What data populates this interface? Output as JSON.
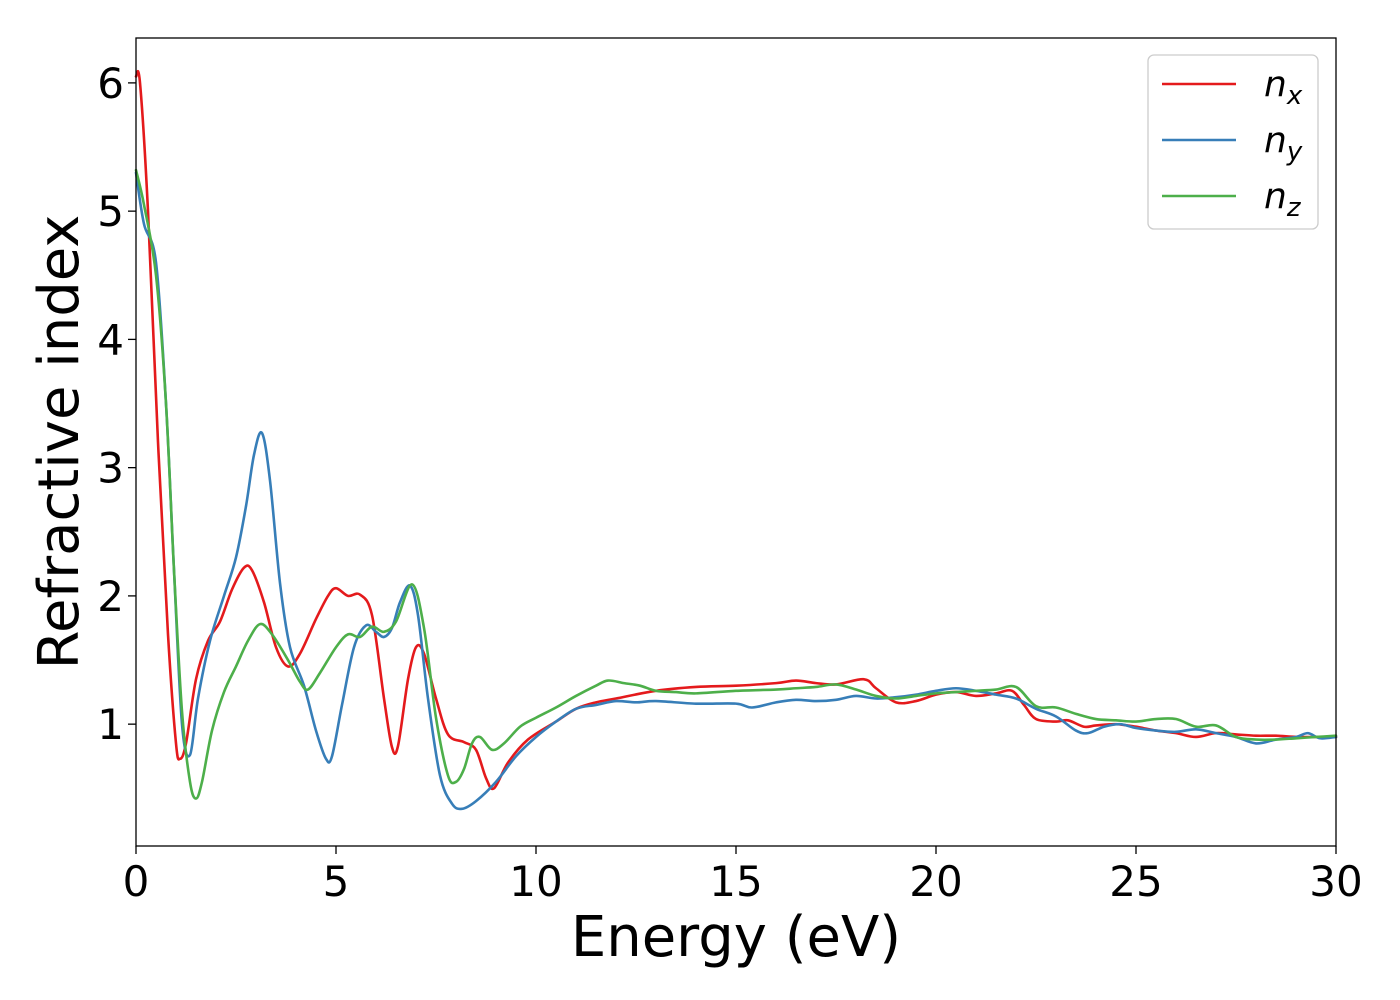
{
  "chart_data": {
    "type": "line",
    "title": "",
    "xlabel": "Energy (eV)",
    "ylabel": "Refractive index",
    "xlim": [
      0,
      30
    ],
    "ylim": [
      0.05,
      6.35
    ],
    "xticks": [
      0,
      5,
      10,
      15,
      20,
      25,
      30
    ],
    "yticks": [
      1,
      2,
      3,
      4,
      5,
      6
    ],
    "grid": false,
    "legend_position": "top-right",
    "series": [
      {
        "name": "n",
        "subscript": "x",
        "color": "#e41a1c",
        "points": [
          [
            0,
            6.05
          ],
          [
            0.1,
            6.0
          ],
          [
            0.3,
            5.0
          ],
          [
            0.55,
            3.2
          ],
          [
            0.8,
            1.7
          ],
          [
            1.0,
            0.85
          ],
          [
            1.1,
            0.73
          ],
          [
            1.25,
            0.85
          ],
          [
            1.5,
            1.35
          ],
          [
            1.8,
            1.65
          ],
          [
            2.1,
            1.8
          ],
          [
            2.4,
            2.05
          ],
          [
            2.7,
            2.22
          ],
          [
            2.9,
            2.2
          ],
          [
            3.2,
            1.95
          ],
          [
            3.5,
            1.6
          ],
          [
            3.8,
            1.45
          ],
          [
            4.1,
            1.55
          ],
          [
            4.5,
            1.82
          ],
          [
            4.8,
            2.0
          ],
          [
            5.0,
            2.06
          ],
          [
            5.3,
            2.0
          ],
          [
            5.6,
            2.01
          ],
          [
            5.9,
            1.85
          ],
          [
            6.2,
            1.2
          ],
          [
            6.4,
            0.82
          ],
          [
            6.55,
            0.83
          ],
          [
            6.8,
            1.35
          ],
          [
            7.0,
            1.6
          ],
          [
            7.2,
            1.55
          ],
          [
            7.5,
            1.2
          ],
          [
            7.8,
            0.92
          ],
          [
            8.2,
            0.86
          ],
          [
            8.5,
            0.8
          ],
          [
            8.75,
            0.58
          ],
          [
            8.95,
            0.5
          ],
          [
            9.3,
            0.7
          ],
          [
            9.8,
            0.88
          ],
          [
            10.5,
            1.02
          ],
          [
            11.0,
            1.12
          ],
          [
            11.5,
            1.17
          ],
          [
            12.0,
            1.2
          ],
          [
            13.0,
            1.26
          ],
          [
            14.0,
            1.29
          ],
          [
            15.0,
            1.3
          ],
          [
            16.0,
            1.32
          ],
          [
            16.5,
            1.34
          ],
          [
            17.0,
            1.32
          ],
          [
            17.5,
            1.31
          ],
          [
            18.2,
            1.35
          ],
          [
            18.5,
            1.28
          ],
          [
            19.0,
            1.17
          ],
          [
            19.5,
            1.18
          ],
          [
            20.0,
            1.23
          ],
          [
            20.5,
            1.25
          ],
          [
            21.0,
            1.22
          ],
          [
            21.5,
            1.24
          ],
          [
            21.9,
            1.26
          ],
          [
            22.2,
            1.15
          ],
          [
            22.5,
            1.04
          ],
          [
            23.0,
            1.02
          ],
          [
            23.3,
            1.03
          ],
          [
            23.7,
            0.98
          ],
          [
            24.0,
            0.99
          ],
          [
            24.5,
            1.0
          ],
          [
            25.0,
            0.98
          ],
          [
            25.5,
            0.95
          ],
          [
            26.0,
            0.93
          ],
          [
            26.5,
            0.9
          ],
          [
            27.0,
            0.93
          ],
          [
            27.5,
            0.92
          ],
          [
            28.0,
            0.91
          ],
          [
            28.5,
            0.91
          ],
          [
            29.0,
            0.9
          ],
          [
            29.5,
            0.9
          ],
          [
            30.0,
            0.9
          ]
        ]
      },
      {
        "name": "n",
        "subscript": "y",
        "color": "#377eb8",
        "points": [
          [
            0,
            5.3
          ],
          [
            0.2,
            4.9
          ],
          [
            0.5,
            4.6
          ],
          [
            0.75,
            3.5
          ],
          [
            0.95,
            2.2
          ],
          [
            1.15,
            1.0
          ],
          [
            1.35,
            0.76
          ],
          [
            1.55,
            1.2
          ],
          [
            1.85,
            1.65
          ],
          [
            2.2,
            2.0
          ],
          [
            2.5,
            2.3
          ],
          [
            2.75,
            2.7
          ],
          [
            2.95,
            3.1
          ],
          [
            3.15,
            3.27
          ],
          [
            3.35,
            2.9
          ],
          [
            3.6,
            2.1
          ],
          [
            3.85,
            1.6
          ],
          [
            4.2,
            1.3
          ],
          [
            4.5,
            0.95
          ],
          [
            4.75,
            0.73
          ],
          [
            4.9,
            0.75
          ],
          [
            5.15,
            1.15
          ],
          [
            5.45,
            1.6
          ],
          [
            5.75,
            1.77
          ],
          [
            6.0,
            1.72
          ],
          [
            6.2,
            1.68
          ],
          [
            6.4,
            1.75
          ],
          [
            6.6,
            1.95
          ],
          [
            6.85,
            2.08
          ],
          [
            7.05,
            1.85
          ],
          [
            7.3,
            1.2
          ],
          [
            7.6,
            0.6
          ],
          [
            7.9,
            0.38
          ],
          [
            8.15,
            0.34
          ],
          [
            8.5,
            0.4
          ],
          [
            9.0,
            0.55
          ],
          [
            9.5,
            0.75
          ],
          [
            10.0,
            0.9
          ],
          [
            10.5,
            1.02
          ],
          [
            11.0,
            1.12
          ],
          [
            11.5,
            1.15
          ],
          [
            12.0,
            1.18
          ],
          [
            12.5,
            1.17
          ],
          [
            13.0,
            1.18
          ],
          [
            14.0,
            1.16
          ],
          [
            15.0,
            1.16
          ],
          [
            15.4,
            1.13
          ],
          [
            16.0,
            1.17
          ],
          [
            16.5,
            1.19
          ],
          [
            17.0,
            1.18
          ],
          [
            17.5,
            1.19
          ],
          [
            18.0,
            1.22
          ],
          [
            18.5,
            1.2
          ],
          [
            19.0,
            1.21
          ],
          [
            19.5,
            1.23
          ],
          [
            20.0,
            1.26
          ],
          [
            20.5,
            1.28
          ],
          [
            21.0,
            1.26
          ],
          [
            21.5,
            1.23
          ],
          [
            22.0,
            1.2
          ],
          [
            22.5,
            1.12
          ],
          [
            23.0,
            1.06
          ],
          [
            23.5,
            0.95
          ],
          [
            23.8,
            0.93
          ],
          [
            24.2,
            0.98
          ],
          [
            24.6,
            1.0
          ],
          [
            25.0,
            0.97
          ],
          [
            25.5,
            0.95
          ],
          [
            26.0,
            0.94
          ],
          [
            26.5,
            0.96
          ],
          [
            27.0,
            0.93
          ],
          [
            27.5,
            0.9
          ],
          [
            28.0,
            0.85
          ],
          [
            28.5,
            0.88
          ],
          [
            29.0,
            0.9
          ],
          [
            29.3,
            0.93
          ],
          [
            29.6,
            0.89
          ],
          [
            30.0,
            0.9
          ]
        ]
      },
      {
        "name": "n",
        "subscript": "z",
        "color": "#4daf4a",
        "points": [
          [
            0,
            5.32
          ],
          [
            0.2,
            5.05
          ],
          [
            0.5,
            4.5
          ],
          [
            0.75,
            3.5
          ],
          [
            0.95,
            2.2
          ],
          [
            1.15,
            1.1
          ],
          [
            1.35,
            0.55
          ],
          [
            1.5,
            0.42
          ],
          [
            1.65,
            0.55
          ],
          [
            1.9,
            0.95
          ],
          [
            2.2,
            1.25
          ],
          [
            2.5,
            1.45
          ],
          [
            2.8,
            1.65
          ],
          [
            3.1,
            1.78
          ],
          [
            3.4,
            1.7
          ],
          [
            3.8,
            1.5
          ],
          [
            4.1,
            1.33
          ],
          [
            4.3,
            1.27
          ],
          [
            4.6,
            1.4
          ],
          [
            5.0,
            1.6
          ],
          [
            5.3,
            1.7
          ],
          [
            5.6,
            1.68
          ],
          [
            5.9,
            1.76
          ],
          [
            6.2,
            1.72
          ],
          [
            6.5,
            1.8
          ],
          [
            6.9,
            2.09
          ],
          [
            7.2,
            1.75
          ],
          [
            7.5,
            1.05
          ],
          [
            7.8,
            0.6
          ],
          [
            8.0,
            0.55
          ],
          [
            8.2,
            0.65
          ],
          [
            8.4,
            0.85
          ],
          [
            8.6,
            0.9
          ],
          [
            8.9,
            0.8
          ],
          [
            9.2,
            0.85
          ],
          [
            9.6,
            0.98
          ],
          [
            10.0,
            1.05
          ],
          [
            10.5,
            1.13
          ],
          [
            11.0,
            1.22
          ],
          [
            11.5,
            1.3
          ],
          [
            11.8,
            1.34
          ],
          [
            12.2,
            1.32
          ],
          [
            12.6,
            1.3
          ],
          [
            13.0,
            1.26
          ],
          [
            13.5,
            1.25
          ],
          [
            14.0,
            1.24
          ],
          [
            15.0,
            1.26
          ],
          [
            16.0,
            1.27
          ],
          [
            16.5,
            1.28
          ],
          [
            17.0,
            1.29
          ],
          [
            17.5,
            1.31
          ],
          [
            18.0,
            1.27
          ],
          [
            18.5,
            1.22
          ],
          [
            19.0,
            1.2
          ],
          [
            19.5,
            1.22
          ],
          [
            20.0,
            1.24
          ],
          [
            20.5,
            1.25
          ],
          [
            21.0,
            1.26
          ],
          [
            21.5,
            1.27
          ],
          [
            22.0,
            1.29
          ],
          [
            22.5,
            1.14
          ],
          [
            23.0,
            1.13
          ],
          [
            23.5,
            1.08
          ],
          [
            24.0,
            1.04
          ],
          [
            24.5,
            1.03
          ],
          [
            25.0,
            1.02
          ],
          [
            25.5,
            1.04
          ],
          [
            26.0,
            1.04
          ],
          [
            26.5,
            0.98
          ],
          [
            27.0,
            0.99
          ],
          [
            27.5,
            0.9
          ],
          [
            28.0,
            0.88
          ],
          [
            28.5,
            0.88
          ],
          [
            29.0,
            0.89
          ],
          [
            29.5,
            0.9
          ],
          [
            30.0,
            0.91
          ]
        ]
      }
    ]
  }
}
